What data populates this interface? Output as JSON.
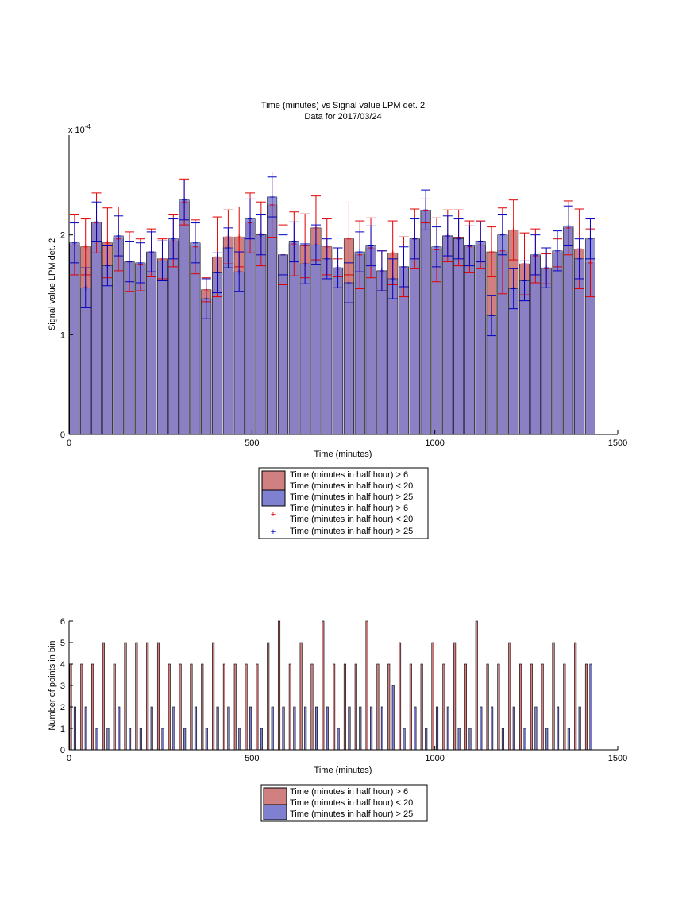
{
  "chart_data": [
    {
      "type": "bar",
      "title": "Time (minutes) vs Signal value LPM det. 2",
      "subtitle": "Data for 2017/03/24",
      "xlabel": "Time (minutes)",
      "ylabel": "Signal value LPM det. 2",
      "exponent_label": "x 10",
      "exponent_power": "-4",
      "xlim": [
        0,
        1500
      ],
      "ylim": [
        0,
        3
      ],
      "xticks": [
        "0",
        "500",
        "1000",
        "1500"
      ],
      "yticks": [
        "0",
        "1",
        "2"
      ],
      "x": [
        15,
        45,
        75,
        105,
        135,
        165,
        195,
        225,
        255,
        285,
        315,
        345,
        375,
        405,
        435,
        465,
        495,
        525,
        555,
        585,
        615,
        645,
        675,
        705,
        735,
        765,
        795,
        825,
        855,
        885,
        915,
        945,
        975,
        1005,
        1035,
        1065,
        1095,
        1125,
        1155,
        1185,
        1215,
        1245,
        1275,
        1305,
        1335,
        1365,
        1395,
        1425
      ],
      "series": [
        {
          "name": "Time (minutes in half hour) > 6\nTime (minutes in half hour) < 20",
          "color": "#d08080",
          "values": [
            1.9,
            1.88,
            2.12,
            1.92,
            1.96,
            1.73,
            1.7,
            1.82,
            1.76,
            1.94,
            2.33,
            1.88,
            1.45,
            1.78,
            1.98,
            1.98,
            2.12,
            2.01,
            2.3,
            1.8,
            1.91,
            1.89,
            2.07,
            1.88,
            1.67,
            1.96,
            1.8,
            1.87,
            1.64,
            1.82,
            1.68,
            1.96,
            2.24,
            1.85,
            1.99,
            1.97,
            1.88,
            1.9,
            1.83,
            1.84,
            2.05,
            1.71,
            1.79,
            1.66,
            1.82,
            2.07,
            1.86,
            1.72
          ],
          "errors": [
            0.3,
            0.28,
            0.3,
            0.35,
            0.32,
            0.3,
            0.26,
            0.24,
            0.2,
            0.26,
            0.23,
            0.27,
            0.12,
            0.4,
            0.27,
            0.3,
            0.3,
            0.32,
            0.33,
            0.3,
            0.32,
            0.32,
            0.32,
            0.28,
            0.09,
            0.36,
            0.34,
            0.3,
            0.2,
            0.32,
            0.3,
            0.3,
            0.12,
            0.32,
            0.26,
            0.28,
            0.26,
            0.24,
            0.25,
            0.43,
            0.3,
            0.31,
            0.27,
            0.15,
            0.14,
            0.27,
            0.4,
            0.34
          ]
        },
        {
          "name": "Time (minutes in half hour) > 25",
          "color": "#8080d0",
          "values": [
            1.92,
            1.47,
            2.13,
            1.69,
            1.99,
            1.73,
            1.72,
            1.83,
            1.74,
            1.96,
            2.35,
            1.92,
            1.36,
            1.62,
            1.87,
            1.63,
            2.16,
            2.0,
            2.38,
            1.8,
            1.93,
            1.71,
            1.9,
            1.76,
            1.67,
            1.52,
            1.83,
            1.89,
            1.64,
            1.56,
            1.68,
            1.96,
            2.25,
            1.88,
            1.99,
            1.96,
            1.89,
            1.93,
            1.19,
            2.0,
            1.46,
            1.54,
            1.8,
            1.67,
            1.84,
            2.09,
            1.76,
            1.96
          ]
        }
      ],
      "legend": {
        "placement": "bottom-center",
        "entries": [
          {
            "kind": "bar",
            "color": "#d08080",
            "line1": "Time (minutes in half hour) > 6",
            "line2": "Time (minutes in half hour) < 20"
          },
          {
            "kind": "bar",
            "color": "#8080d0",
            "line1": "Time (minutes in half hour) > 25"
          },
          {
            "kind": "marker",
            "color": "#e00000",
            "line1": "Time (minutes in half hour) > 6",
            "line2": "Time (minutes in half hour) < 20"
          },
          {
            "kind": "marker",
            "color": "#0000c0",
            "line1": "Time (minutes in half hour) > 25"
          }
        ]
      }
    },
    {
      "type": "bar",
      "xlabel": "Time (minutes)",
      "ylabel": "Number of points in bin",
      "xlim": [
        0,
        1500
      ],
      "ylim": [
        0,
        6
      ],
      "xticks": [
        "0",
        "500",
        "1000",
        "1500"
      ],
      "yticks": [
        "0",
        "1",
        "2",
        "3",
        "4",
        "5",
        "6"
      ],
      "x": [
        15,
        45,
        75,
        105,
        135,
        165,
        195,
        225,
        255,
        285,
        315,
        345,
        375,
        405,
        435,
        465,
        495,
        525,
        555,
        585,
        615,
        645,
        675,
        705,
        735,
        765,
        795,
        825,
        855,
        885,
        915,
        945,
        975,
        1005,
        1035,
        1065,
        1095,
        1125,
        1155,
        1185,
        1215,
        1245,
        1275,
        1305,
        1335,
        1365,
        1395,
        1425
      ],
      "series": [
        {
          "name": "Time (minutes in half hour) > 6\nTime (minutes in half hour) < 20",
          "color": "#d08080",
          "values": [
            4,
            4,
            4,
            5,
            4,
            5,
            5,
            5,
            5,
            4,
            4,
            4,
            4,
            5,
            4,
            4,
            4,
            4,
            5,
            6,
            4,
            5,
            4,
            6,
            4,
            4,
            4,
            6,
            4,
            4,
            5,
            4,
            4,
            5,
            4,
            5,
            4,
            6,
            4,
            4,
            5,
            4,
            4,
            4,
            5,
            4,
            5,
            4
          ]
        },
        {
          "name": "Time (minutes in half hour) > 25",
          "color": "#8080d0",
          "values": [
            2,
            2,
            1,
            1,
            2,
            1,
            1,
            2,
            1,
            2,
            1,
            2,
            1,
            2,
            2,
            1,
            2,
            1,
            2,
            2,
            2,
            2,
            2,
            2,
            1,
            2,
            2,
            2,
            2,
            3,
            1,
            2,
            1,
            2,
            2,
            1,
            1,
            2,
            2,
            1,
            2,
            1,
            2,
            1,
            2,
            1,
            2,
            4
          ]
        }
      ],
      "legend": {
        "placement": "bottom-center",
        "entries": [
          {
            "kind": "bar",
            "color": "#d08080",
            "line1": "Time (minutes in half hour) > 6",
            "line2": "Time (minutes in half hour) < 20"
          },
          {
            "kind": "bar",
            "color": "#8080d0",
            "line1": "Time (minutes in half hour) > 25"
          }
        ]
      }
    }
  ]
}
